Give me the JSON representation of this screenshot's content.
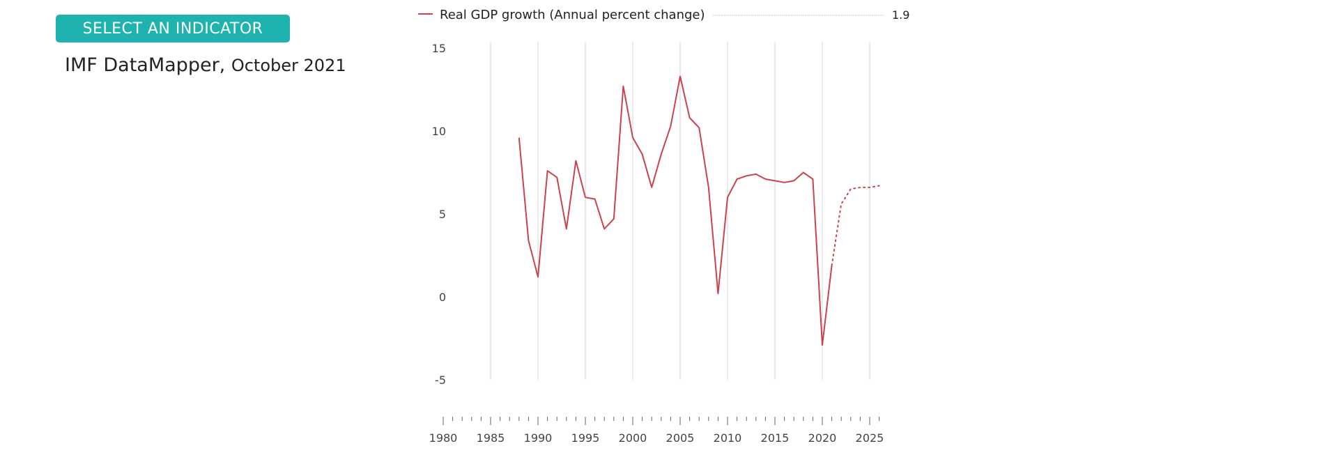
{
  "header": {
    "indicator_button_label": "SELECT AN INDICATOR",
    "source_name": "IMF DataMapper",
    "source_separator": ", ",
    "source_date": "October 2021"
  },
  "colors": {
    "accent": "#1fb3b0",
    "series": "#c9424d",
    "grid": "#d6d6d6"
  },
  "chart_data": {
    "type": "line",
    "legend": {
      "label": "Real GDP growth (Annual percent change)",
      "value": "1.9"
    },
    "xlim": [
      1980,
      2026
    ],
    "ylim": [
      -5,
      15
    ],
    "x_ticks": [
      "1980",
      "1985",
      "1990",
      "1995",
      "2000",
      "2005",
      "2010",
      "2015",
      "2020",
      "2025"
    ],
    "y_ticks": [
      "15",
      "10",
      "5",
      "0",
      "-5"
    ],
    "vertical_grid": true,
    "series": [
      {
        "name": "Real GDP growth (Annual percent change)",
        "actual": {
          "x": [
            1988,
            1989,
            1990,
            1991,
            1992,
            1993,
            1994,
            1995,
            1996,
            1997,
            1998,
            1999,
            2000,
            2001,
            2002,
            2003,
            2004,
            2005,
            2006,
            2007,
            2008,
            2009,
            2010,
            2011,
            2012,
            2013,
            2014,
            2015,
            2016,
            2017,
            2018,
            2019,
            2020,
            2021
          ],
          "y": [
            9.6,
            3.4,
            1.2,
            7.6,
            7.2,
            4.1,
            8.2,
            6.0,
            5.9,
            4.1,
            4.7,
            12.7,
            9.6,
            8.6,
            6.6,
            8.6,
            10.3,
            13.3,
            10.8,
            10.2,
            6.6,
            0.2,
            6.0,
            7.1,
            7.3,
            7.4,
            7.1,
            7.0,
            6.9,
            7.0,
            7.5,
            7.1,
            -2.9,
            1.9
          ]
        },
        "projection": {
          "x": [
            2021,
            2022,
            2023,
            2024,
            2025,
            2026
          ],
          "y": [
            1.9,
            5.6,
            6.5,
            6.6,
            6.6,
            6.7
          ]
        }
      }
    ]
  }
}
